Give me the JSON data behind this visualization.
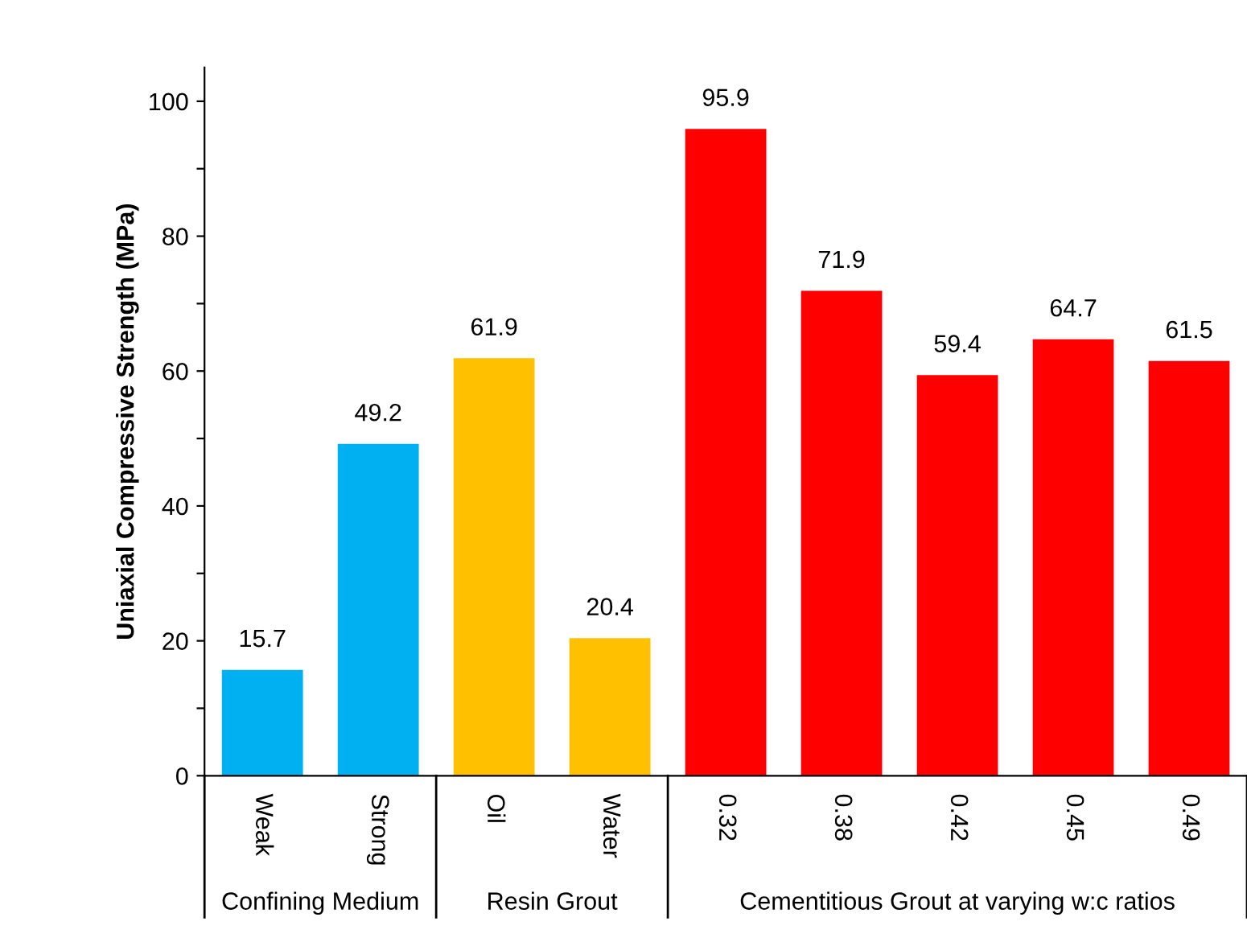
{
  "chart_data": {
    "type": "bar",
    "ylabel": "Uniaxial Compressive Strength (MPa)",
    "categories": [
      "Weak",
      "Strong",
      "Oil",
      "Water",
      "0.32",
      "0.38",
      "0.42",
      "0.45",
      "0.49"
    ],
    "values": [
      15.7,
      49.2,
      61.9,
      20.4,
      95.9,
      71.9,
      59.4,
      64.7,
      61.5
    ],
    "colors": [
      "#00b0f0",
      "#00b0f0",
      "#ffc000",
      "#ffc000",
      "#ff0000",
      "#ff0000",
      "#ff0000",
      "#ff0000",
      "#ff0000"
    ],
    "ylim": [
      0,
      105
    ],
    "yticks": [
      0,
      {
        "value": 10,
        "label": null
      },
      20,
      {
        "value": 30,
        "label": null
      },
      40,
      {
        "value": 50,
        "label": null
      },
      60,
      {
        "value": 70,
        "label": null
      },
      80,
      {
        "value": 90,
        "label": null
      },
      100
    ],
    "data_labels": true,
    "grid": false,
    "legend": false,
    "annotations": [
      "Confining Medium",
      "Resin Grout",
      "Cementitious Grout at varying w:c ratios"
    ]
  }
}
